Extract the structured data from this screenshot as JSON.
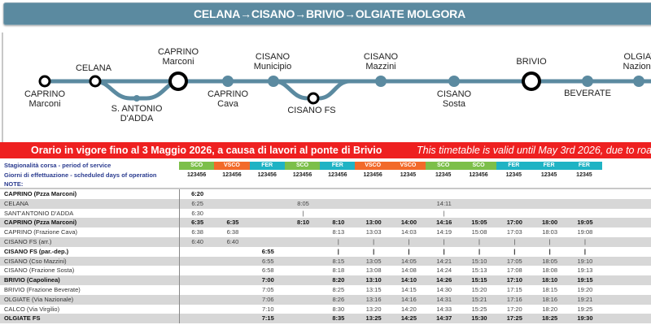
{
  "title": "CELANA→CISANO→BRIVIO→OLGIATE MOLGORA",
  "route_map": {
    "line_color": "#5b8aa0",
    "stops": [
      {
        "name": "CAPRINO",
        "sub": "Marconi",
        "type": "terminal",
        "label_pos": "below"
      },
      {
        "name": "CELANA",
        "sub": "",
        "type": "terminal",
        "label_pos": "above"
      },
      {
        "name": "S. ANTONIO",
        "sub": "D'ADDA",
        "type": "stop",
        "label_pos": "below"
      },
      {
        "name": "CAPRINO",
        "sub": "Marconi",
        "type": "major",
        "label_pos": "above"
      },
      {
        "name": "CAPRINO",
        "sub": "Cava",
        "type": "stop",
        "label_pos": "below"
      },
      {
        "name": "CISANO",
        "sub": "Municipio",
        "type": "stop",
        "label_pos": "above"
      },
      {
        "name": "CISANO FS",
        "sub": "",
        "type": "terminal",
        "label_pos": "below"
      },
      {
        "name": "CISANO",
        "sub": "Mazzini",
        "type": "stop",
        "label_pos": "above"
      },
      {
        "name": "CISANO",
        "sub": "Sosta",
        "type": "stop",
        "label_pos": "below"
      },
      {
        "name": "BRIVIO",
        "sub": "",
        "type": "major",
        "label_pos": "above"
      },
      {
        "name": "BEVERATE",
        "sub": "",
        "type": "stop",
        "label_pos": "below"
      },
      {
        "name": "OLGIATE",
        "sub": "Nazionale",
        "type": "stop",
        "label_pos": "above"
      }
    ]
  },
  "banner": {
    "italian": "Orario in vigore fino al 3 Maggio 2026, a causa di lavori al ponte di Brivio",
    "english": "This timetable is valid until May 3rd 2026, due to road",
    "color": "#ee2020"
  },
  "labels": {
    "season": "Stagionalità corsa - period of service",
    "days": "Giorni di effettuazione - scheduled days of operation",
    "note": "NOTE:"
  },
  "season_colors": {
    "SCO": "#7cbf4a",
    "VSCO": "#f26a2a",
    "FER": "#1fb3c4"
  },
  "columns": [
    {
      "season": "SCO",
      "days": "123456"
    },
    {
      "season": "VSCO",
      "days": "123456"
    },
    {
      "season": "FER",
      "days": "123456"
    },
    {
      "season": "SCO",
      "days": "123456"
    },
    {
      "season": "FER",
      "days": "123456"
    },
    {
      "season": "VSCO",
      "days": "123456"
    },
    {
      "season": "VSCO",
      "days": "12345"
    },
    {
      "season": "SCO",
      "days": "12345"
    },
    {
      "season": "SCO",
      "days": "123456"
    },
    {
      "season": "FER",
      "days": "12345"
    },
    {
      "season": "FER",
      "days": "12345"
    },
    {
      "season": "FER",
      "days": "12345"
    }
  ],
  "rows": [
    {
      "stop": "CAPRINO (Pzza Marconi)",
      "bold": true,
      "shade": false,
      "times": [
        "6:20",
        "",
        "",
        "",
        "",
        "",
        "",
        "",
        "",
        "",
        "",
        ""
      ]
    },
    {
      "stop": "CELANA",
      "bold": false,
      "shade": true,
      "times": [
        "6:25",
        "",
        "",
        "8:05",
        "",
        "",
        "",
        "14:11",
        "",
        "",
        "",
        ""
      ]
    },
    {
      "stop": "SANT'ANTONIO D'ADDA",
      "bold": false,
      "shade": false,
      "times": [
        "6:30",
        "",
        "",
        "|",
        "",
        "",
        "",
        "|",
        "",
        "",
        "",
        ""
      ]
    },
    {
      "stop": "CAPRINO (Pzza Marconi)",
      "bold": true,
      "shade": true,
      "times": [
        "6:35",
        "6:35",
        "",
        "8:10",
        "8:10",
        "13:00",
        "14:00",
        "14:16",
        "15:05",
        "17:00",
        "18:00",
        "19:05"
      ]
    },
    {
      "stop": "CAPRINO (Frazione Cava)",
      "bold": false,
      "shade": false,
      "times": [
        "6:38",
        "6:38",
        "",
        "",
        "8:13",
        "13:03",
        "14:03",
        "14:19",
        "15:08",
        "17:03",
        "18:03",
        "19:08"
      ]
    },
    {
      "stop": "CISANO FS (arr.)",
      "bold": false,
      "shade": true,
      "times": [
        "6:40",
        "6:40",
        "",
        "",
        "|",
        "|",
        "|",
        "|",
        "|",
        "|",
        "|",
        "|"
      ]
    },
    {
      "stop": "CISANO FS (par.-dep.)",
      "bold": true,
      "shade": false,
      "times": [
        "",
        "",
        "6:55",
        "",
        "|",
        "|",
        "|",
        "|",
        "|",
        "|",
        "|",
        "|"
      ]
    },
    {
      "stop": "CISANO  (Cso Mazzini)",
      "bold": false,
      "shade": true,
      "times": [
        "",
        "",
        "6:55",
        "",
        "8:15",
        "13:05",
        "14:05",
        "14:21",
        "15:10",
        "17:05",
        "18:05",
        "19:10"
      ]
    },
    {
      "stop": "CISANO (Frazione Sosta)",
      "bold": false,
      "shade": false,
      "times": [
        "",
        "",
        "6:58",
        "",
        "8:18",
        "13:08",
        "14:08",
        "14:24",
        "15:13",
        "17:08",
        "18:08",
        "19:13"
      ]
    },
    {
      "stop": "BRIVIO (Capolinea)",
      "bold": true,
      "shade": true,
      "times": [
        "",
        "",
        "7:00",
        "",
        "8:20",
        "13:10",
        "14:10",
        "14:26",
        "15:15",
        "17:10",
        "18:10",
        "19:15"
      ]
    },
    {
      "stop": "BRIVIO (Frazione Beverate)",
      "bold": false,
      "shade": false,
      "times": [
        "",
        "",
        "7:05",
        "",
        "8:25",
        "13:15",
        "14:15",
        "14:30",
        "15:20",
        "17:15",
        "18:15",
        "19:20"
      ]
    },
    {
      "stop": "OLGIATE (Via Nazionale)",
      "bold": false,
      "shade": true,
      "times": [
        "",
        "",
        "7:06",
        "",
        "8:26",
        "13:16",
        "14:16",
        "14:31",
        "15:21",
        "17:16",
        "18:16",
        "19:21"
      ]
    },
    {
      "stop": "CALCO (Via Virgilio)",
      "bold": false,
      "shade": false,
      "times": [
        "",
        "",
        "7:10",
        "",
        "8:30",
        "13:20",
        "14:20",
        "14:33",
        "15:25",
        "17:20",
        "18:20",
        "19:25"
      ]
    },
    {
      "stop": "OLGIATE FS",
      "bold": true,
      "shade": true,
      "times": [
        "",
        "",
        "7:15",
        "",
        "8:35",
        "13:25",
        "14:25",
        "14:37",
        "15:30",
        "17:25",
        "18:25",
        "19:30"
      ]
    }
  ]
}
